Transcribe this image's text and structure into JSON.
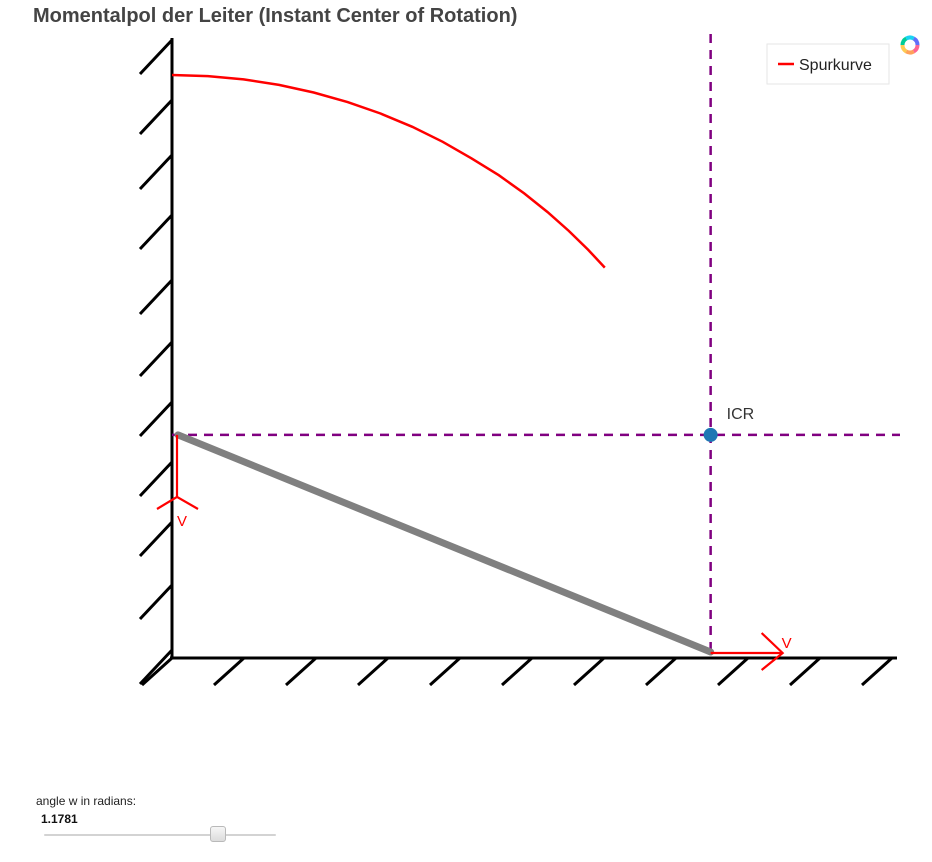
{
  "title": "Momentalpol der Leiter (Instant Center of Rotation)",
  "legend": {
    "entry": "Spurkurve",
    "color": "#ff0000"
  },
  "labels": {
    "icr": "ICR",
    "v_wall": "V",
    "v_floor": "V"
  },
  "slider": {
    "label": "angle w in radians:",
    "value": "1.1781",
    "min": 0,
    "max": 1.5708
  },
  "logo_icon": "plotly-colorwheel-icon",
  "colors": {
    "curve": "#ff0000",
    "ladder": "#808080",
    "dashed": "#800080",
    "icr_marker": "#1f77b4",
    "wall": "#000000"
  },
  "chart_data": {
    "type": "line",
    "title": "Momentalpol der Leiter (Instant Center of Rotation)",
    "ladder_length": 1,
    "angle": 1.1781,
    "series": [
      {
        "name": "Spurkurve",
        "x": [
          0,
          0.0616,
          0.1228,
          0.1835,
          0.243,
          0.3012,
          0.3576,
          0.4122,
          0.4643,
          0.5139,
          0.5606,
          0.6041,
          0.6443,
          0.6808,
          0.7135,
          0.7424
        ],
        "y": [
          1,
          0.9981,
          0.9924,
          0.983,
          0.97,
          0.9536,
          0.9339,
          0.9111,
          0.8854,
          0.857,
          0.8281,
          0.7969,
          0.7648,
          0.7325,
          0.7006,
          0.6697
        ]
      }
    ],
    "ladder": {
      "top": [
        0,
        0.3827
      ],
      "bottom": [
        0.9239,
        0
      ]
    },
    "icr": [
      0.9239,
      0.3827
    ],
    "xlim": [
      0,
      1.25
    ],
    "ylim": [
      0,
      1.1
    ],
    "grid": false
  }
}
